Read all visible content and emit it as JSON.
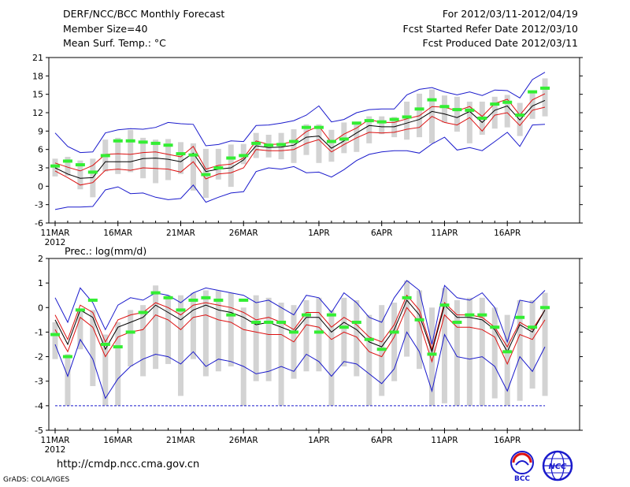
{
  "header": {
    "title": "DERF/NCC/BCC Monthly Forecast",
    "member_size": "Member Size=40",
    "variable": "Mean Surf. Temp.: °C",
    "period": "For 2012/03/11-2012/04/19",
    "started": "Fcst Started Refer Date 2012/03/10",
    "produced": "Fcst Produced Date 2012/03/11"
  },
  "footer": {
    "url": "http://cmdp.ncc.cma.gov.cn",
    "credit": "GrADS: COLA/IGES",
    "logo_left_text": "BCC",
    "logo_right_text": "NCC"
  },
  "colors": {
    "box": "#d3d3d3",
    "median": "#000000",
    "percentile": "#dd1111",
    "extreme": "#1a1acc",
    "climo": "#33ee33",
    "reference": "#1a1acc"
  },
  "chart_data": [
    {
      "type": "line",
      "name": "temperature",
      "ylabel": "Mean Surf. Temp.: °C",
      "ylim": [
        -6,
        21
      ],
      "yticks": [
        -6,
        -3,
        0,
        3,
        6,
        9,
        12,
        15,
        18,
        21
      ],
      "xticks": [
        {
          "day": 1,
          "label": "11MAR",
          "sub": "2012"
        },
        {
          "day": 6,
          "label": "16MAR"
        },
        {
          "day": 11,
          "label": "21MAR"
        },
        {
          "day": 16,
          "label": "26MAR"
        },
        {
          "day": 22,
          "label": "1APR"
        },
        {
          "day": 27,
          "label": "6APR"
        },
        {
          "day": 32,
          "label": "11APR"
        },
        {
          "day": 37,
          "label": "16APR"
        }
      ],
      "x": [
        1,
        2,
        3,
        4,
        5,
        6,
        7,
        8,
        9,
        10,
        11,
        12,
        13,
        14,
        15,
        16,
        17,
        18,
        19,
        20,
        21,
        22,
        23,
        24,
        25,
        26,
        27,
        28,
        29,
        30,
        31,
        32,
        33,
        34,
        35,
        36,
        37,
        38,
        39,
        40
      ],
      "series": [
        {
          "name": "max",
          "values": [
            8.7,
            6.5,
            5.5,
            5.6,
            8.7,
            9.2,
            9.4,
            9.3,
            9.6,
            10.4,
            10.2,
            10.1,
            6.6,
            6.8,
            7.4,
            7.3,
            9.9,
            10.0,
            10.3,
            10.7,
            11.6,
            13.1,
            10.5,
            10.9,
            12.0,
            12.5,
            12.6,
            12.6,
            14.9,
            15.8,
            16.1,
            15.4,
            14.9,
            15.4,
            14.8,
            15.7,
            15.6,
            14.4,
            17.4,
            18.6
          ]
        },
        {
          "name": "p75",
          "values": [
            3.8,
            3.1,
            2.5,
            3.4,
            5.2,
            5.3,
            5.2,
            5.5,
            5.6,
            5.2,
            4.8,
            6.5,
            2.8,
            3.4,
            3.6,
            4.6,
            7.4,
            6.8,
            6.9,
            7.3,
            8.9,
            9.8,
            7.1,
            8.5,
            9.5,
            10.9,
            10.4,
            10.4,
            11.0,
            11.5,
            13.0,
            12.9,
            12.3,
            13.0,
            11.4,
            13.5,
            14.2,
            11.6,
            14.1,
            15.1
          ]
        },
        {
          "name": "median",
          "values": [
            3.0,
            2.0,
            1.3,
            1.4,
            4.0,
            4.0,
            4.0,
            4.5,
            4.6,
            4.4,
            4.0,
            5.4,
            2.4,
            2.8,
            3.0,
            4.3,
            6.6,
            6.3,
            6.4,
            6.7,
            8.0,
            8.2,
            6.2,
            7.4,
            8.7,
            9.9,
            9.7,
            9.7,
            10.3,
            10.9,
            12.2,
            11.8,
            11.2,
            12.2,
            10.4,
            12.4,
            13.1,
            10.8,
            13.1,
            14.0
          ]
        },
        {
          "name": "p25",
          "values": [
            2.5,
            1.4,
            0.2,
            0.6,
            2.6,
            2.8,
            2.6,
            3.0,
            2.9,
            2.8,
            2.3,
            4.0,
            1.2,
            2.0,
            2.2,
            3.0,
            6.0,
            5.8,
            5.8,
            6.0,
            7.0,
            7.6,
            5.6,
            6.8,
            7.9,
            8.8,
            8.7,
            8.8,
            9.3,
            9.6,
            11.4,
            10.4,
            10.0,
            11.2,
            9.0,
            11.6,
            12.0,
            9.9,
            12.4,
            12.9
          ]
        },
        {
          "name": "min",
          "values": [
            -3.8,
            -3.4,
            -3.4,
            -3.3,
            -0.6,
            -0.1,
            -1.2,
            -1.1,
            -1.8,
            -2.2,
            -2.0,
            0.2,
            -2.6,
            -1.8,
            -1.1,
            -0.9,
            2.4,
            3.0,
            2.8,
            3.2,
            2.2,
            2.3,
            1.5,
            2.7,
            4.2,
            5.2,
            5.6,
            5.8,
            5.8,
            5.4,
            6.9,
            8.0,
            5.9,
            6.3,
            5.8,
            7.3,
            8.8,
            6.5,
            10.0,
            10.1
          ]
        },
        {
          "name": "box_top",
          "values": [
            4.5,
            4.8,
            4.2,
            4.5,
            7.6,
            7.9,
            9.2,
            7.9,
            7.6,
            7.7,
            7.2,
            7.0,
            6.1,
            6.1,
            6.8,
            6.9,
            8.7,
            8.4,
            8.7,
            9.3,
            10.1,
            10.1,
            9.2,
            10.4,
            10.1,
            11.4,
            11.4,
            11.3,
            13.8,
            15.1,
            15.8,
            14.8,
            14.6,
            13.8,
            13.8,
            14.6,
            14.9,
            13.6,
            15.6,
            17.6
          ]
        },
        {
          "name": "box_bottom",
          "values": [
            1.6,
            1.7,
            -0.5,
            -1.8,
            2.4,
            2.0,
            2.3,
            1.3,
            0.5,
            1.0,
            2.0,
            -0.7,
            -1.9,
            1.1,
            -0.1,
            3.6,
            4.6,
            4.7,
            4.4,
            3.8,
            5.1,
            3.8,
            4.0,
            5.4,
            5.6,
            7.0,
            8.5,
            8.0,
            7.6,
            8.0,
            7.0,
            10.4,
            8.9,
            7.0,
            8.4,
            9.4,
            9.6,
            8.2,
            11.0,
            11.4
          ]
        },
        {
          "name": "climatology",
          "values": [
            3.3,
            4.1,
            3.5,
            2.3,
            5.0,
            7.4,
            7.4,
            7.2,
            7.0,
            6.7,
            5.3,
            5.1,
            1.9,
            3.0,
            4.6,
            5.0,
            7.0,
            6.7,
            6.8,
            7.3,
            9.6,
            9.6,
            7.3,
            7.7,
            10.3,
            10.7,
            10.5,
            10.9,
            11.3,
            12.6,
            14.1,
            13.0,
            12.5,
            12.4,
            11.1,
            13.4,
            13.7,
            11.6,
            15.4,
            16.0
          ]
        }
      ]
    },
    {
      "type": "line",
      "name": "precipitation",
      "ylabel": "Prec.: log(mm/d)",
      "ylim": [
        -5,
        2
      ],
      "yticks": [
        -5,
        -4,
        -3,
        -2,
        -1,
        0,
        1,
        2
      ],
      "reference_line": -4,
      "xticks": [
        {
          "day": 1,
          "label": "11MAR",
          "sub": "2012"
        },
        {
          "day": 6,
          "label": "16MAR"
        },
        {
          "day": 11,
          "label": "21MAR"
        },
        {
          "day": 16,
          "label": "26MAR"
        },
        {
          "day": 22,
          "label": "1APR"
        },
        {
          "day": 27,
          "label": "6APR"
        },
        {
          "day": 32,
          "label": "11APR"
        },
        {
          "day": 37,
          "label": "16APR"
        }
      ],
      "x": [
        1,
        2,
        3,
        4,
        5,
        6,
        7,
        8,
        9,
        10,
        11,
        12,
        13,
        14,
        15,
        16,
        17,
        18,
        19,
        20,
        21,
        22,
        23,
        24,
        25,
        26,
        27,
        28,
        29,
        30,
        31,
        32,
        33,
        34,
        35,
        36,
        37,
        38,
        39,
        40
      ],
      "series": [
        {
          "name": "max",
          "values": [
            0.4,
            -0.6,
            0.8,
            0.2,
            -0.9,
            0.1,
            0.4,
            0.3,
            0.6,
            0.5,
            0.2,
            0.6,
            0.8,
            0.7,
            0.6,
            0.5,
            0.2,
            0.3,
            0.0,
            -0.3,
            0.5,
            0.4,
            -0.2,
            0.6,
            0.2,
            -0.4,
            -0.6,
            0.4,
            1.1,
            0.7,
            -1.5,
            0.9,
            0.4,
            0.3,
            0.6,
            0.0,
            -1.4,
            0.3,
            0.2,
            0.7
          ]
        },
        {
          "name": "p75",
          "values": [
            -0.3,
            -1.3,
            0.1,
            -0.2,
            -1.4,
            -0.5,
            -0.3,
            -0.2,
            0.2,
            0.0,
            -0.3,
            0.1,
            0.2,
            0.1,
            0.0,
            -0.2,
            -0.5,
            -0.4,
            -0.6,
            -0.9,
            -0.2,
            -0.2,
            -0.8,
            -0.4,
            -0.7,
            -1.2,
            -1.4,
            -0.7,
            0.5,
            -0.1,
            -1.7,
            0.2,
            -0.3,
            -0.3,
            -0.4,
            -0.8,
            -1.6,
            -0.6,
            -0.9,
            -0.1
          ]
        },
        {
          "name": "median",
          "values": [
            -0.5,
            -1.5,
            -0.1,
            -0.4,
            -1.7,
            -0.8,
            -0.6,
            -0.4,
            0.1,
            -0.2,
            -0.5,
            -0.1,
            0.1,
            -0.1,
            -0.2,
            -0.4,
            -0.7,
            -0.6,
            -0.8,
            -1.0,
            -0.4,
            -0.4,
            -1.0,
            -0.6,
            -0.9,
            -1.4,
            -1.6,
            -0.9,
            0.3,
            -0.3,
            -1.8,
            0.1,
            -0.4,
            -0.4,
            -0.5,
            -0.9,
            -1.8,
            -0.7,
            -1.0,
            -0.1
          ]
        },
        {
          "name": "p25",
          "values": [
            -0.9,
            -1.8,
            -0.4,
            -0.8,
            -2.0,
            -1.2,
            -1.0,
            -0.9,
            -0.3,
            -0.5,
            -0.9,
            -0.4,
            -0.3,
            -0.5,
            -0.6,
            -0.9,
            -1.0,
            -1.1,
            -1.1,
            -1.4,
            -0.7,
            -0.8,
            -1.3,
            -1.0,
            -1.2,
            -1.8,
            -2.0,
            -1.2,
            0.0,
            -0.6,
            -2.2,
            -0.3,
            -0.8,
            -0.8,
            -0.9,
            -1.2,
            -2.3,
            -1.1,
            -1.3,
            -0.5
          ]
        },
        {
          "name": "min",
          "values": [
            -1.5,
            -2.8,
            -1.3,
            -2.1,
            -3.7,
            -2.9,
            -2.4,
            -2.1,
            -1.9,
            -2.0,
            -2.3,
            -1.8,
            -2.4,
            -2.1,
            -2.2,
            -2.4,
            -2.7,
            -2.6,
            -2.4,
            -2.6,
            -1.9,
            -2.2,
            -2.8,
            -2.2,
            -2.3,
            -2.7,
            -3.1,
            -2.5,
            -1.0,
            -1.8,
            -3.4,
            -1.1,
            -2.0,
            -2.1,
            -2.0,
            -2.4,
            -3.4,
            -2.0,
            -2.6,
            -1.6
          ]
        },
        {
          "name": "box_top",
          "values": [
            -0.6,
            -1.9,
            -0.1,
            -0.1,
            -1.1,
            -0.6,
            -0.1,
            0.1,
            0.9,
            0.5,
            0.5,
            0.6,
            0.7,
            0.7,
            0.6,
            0.0,
            0.5,
            0.4,
            0.2,
            0.1,
            0.3,
            0.4,
            -0.1,
            0.4,
            0.3,
            -0.3,
            0.1,
            0.2,
            1.1,
            0.7,
            0.0,
            0.8,
            0.3,
            0.4,
            0.4,
            0.0,
            -0.3,
            0.3,
            0.3,
            0.6
          ]
        },
        {
          "name": "box_bottom",
          "values": [
            -2.1,
            -4.0,
            -1.7,
            -3.2,
            -4.0,
            -4.0,
            -2.4,
            -2.8,
            -2.5,
            -2.3,
            -3.6,
            -2.1,
            -2.8,
            -2.6,
            -2.4,
            -4.0,
            -3.0,
            -3.0,
            -4.0,
            -2.9,
            -2.6,
            -2.6,
            -4.0,
            -2.4,
            -2.8,
            -4.0,
            -3.6,
            -3.0,
            -2.0,
            -2.5,
            -4.0,
            -3.9,
            -4.0,
            -4.0,
            -4.0,
            -3.7,
            -4.0,
            -3.8,
            -3.3,
            -3.6
          ]
        },
        {
          "name": "climatology",
          "values": [
            -1.1,
            -2.0,
            -0.1,
            0.3,
            -1.5,
            -1.6,
            -1.0,
            -0.2,
            0.6,
            0.4,
            -0.1,
            0.3,
            0.4,
            0.3,
            -0.3,
            0.3,
            -0.6,
            -0.6,
            -0.6,
            -1.0,
            -0.3,
            -1.0,
            -0.3,
            -0.8,
            -0.6,
            -1.3,
            -1.7,
            -1.0,
            0.4,
            -0.5,
            -1.9,
            0.1,
            -0.6,
            -0.3,
            -0.3,
            -0.8,
            -1.8,
            -0.4,
            -0.8,
            0.0
          ]
        }
      ]
    }
  ]
}
